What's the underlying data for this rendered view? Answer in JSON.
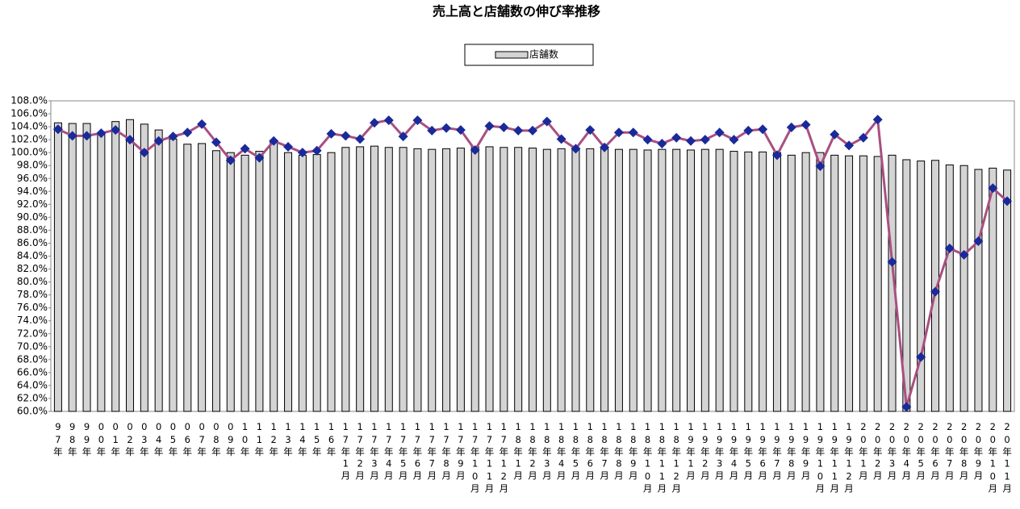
{
  "chart_data": {
    "type": "combo",
    "title": "売上高と店舗数の伸び率推移",
    "categories": [
      "97年",
      "98年",
      "99年",
      "00年",
      "01年",
      "02年",
      "03年",
      "04年",
      "05年",
      "06年",
      "07年",
      "08年",
      "09年",
      "10年",
      "11年",
      "12年",
      "13年",
      "14年",
      "15年",
      "16年",
      "17年1月",
      "17年2月",
      "17年3月",
      "17年4月",
      "17年5月",
      "17年6月",
      "17年7月",
      "17年8月",
      "17年9月",
      "17年10月",
      "17年11月",
      "17年12月",
      "18年1月",
      "18年2月",
      "18年3月",
      "18年4月",
      "18年5月",
      "18年6月",
      "18年7月",
      "18年8月",
      "18年9月",
      "18年10月",
      "18年11月",
      "18年12月",
      "19年1月",
      "19年2月",
      "19年3月",
      "19年4月",
      "19年5月",
      "19年6月",
      "19年7月",
      "19年8月",
      "19年9月",
      "19年10月",
      "19年11月",
      "19年12月",
      "20年1月",
      "20年2月",
      "20年3月",
      "20年4月",
      "20年5月",
      "20年6月",
      "20年7月",
      "20年8月",
      "20年9月",
      "20年10月",
      "20年11月"
    ],
    "series": [
      {
        "name": "店舗数",
        "type": "bar",
        "color": "#d4d4d4",
        "values": [
          104.6,
          104.5,
          104.5,
          102.8,
          104.8,
          105.1,
          104.4,
          103.5,
          102.1,
          101.3,
          101.4,
          100.3,
          100.0,
          99.6,
          100.2,
          101.6,
          100.0,
          99.6,
          99.7,
          100.0,
          100.8,
          100.9,
          101.0,
          100.8,
          100.8,
          100.6,
          100.5,
          100.6,
          100.7,
          100.9,
          100.9,
          100.8,
          100.8,
          100.7,
          100.5,
          100.6,
          100.7,
          100.6,
          100.7,
          100.5,
          100.5,
          100.4,
          100.5,
          100.5,
          100.4,
          100.5,
          100.5,
          100.2,
          100.1,
          100.1,
          100.0,
          99.6,
          100.0,
          100.0,
          99.6,
          99.5,
          99.5,
          99.4,
          99.6,
          98.9,
          98.7,
          98.8,
          98.1,
          98.0,
          97.4,
          97.6,
          97.3
        ]
      },
      {
        "type": "line",
        "color": "#a94f80",
        "marker_color": "#1a2a9a",
        "values": [
          103.6,
          102.6,
          102.6,
          103.0,
          103.5,
          102.0,
          100.0,
          101.8,
          102.5,
          103.1,
          104.4,
          101.6,
          98.8,
          100.6,
          99.2,
          101.8,
          100.9,
          100.0,
          100.3,
          102.9,
          102.6,
          102.1,
          104.6,
          105.0,
          102.5,
          105.0,
          103.4,
          103.8,
          103.5,
          100.4,
          104.1,
          103.9,
          103.4,
          103.4,
          104.8,
          102.1,
          100.6,
          103.5,
          100.8,
          103.1,
          103.1,
          102.0,
          101.4,
          102.3,
          101.8,
          102.0,
          103.1,
          102.0,
          103.4,
          103.6,
          99.6,
          103.9,
          104.3,
          97.9,
          102.8,
          101.1,
          102.3,
          105.1,
          83.1,
          60.7,
          68.4,
          78.5,
          85.2,
          84.2,
          86.3,
          94.5,
          92.5
        ]
      }
    ],
    "ylim": [
      60,
      108
    ],
    "yticks": [
      {
        "value": 60,
        "label": "60.0%"
      },
      {
        "value": 62,
        "label": "62.0%"
      },
      {
        "value": 64,
        "label": "64.0%"
      },
      {
        "value": 66,
        "label": "66.0%"
      },
      {
        "value": 68,
        "label": "68.0%"
      },
      {
        "value": 70,
        "label": "70.0%"
      },
      {
        "value": 72,
        "label": "72.0%"
      },
      {
        "value": 74,
        "label": "74.0%"
      },
      {
        "value": 76,
        "label": "76.0%"
      },
      {
        "value": 78,
        "label": "78.0%"
      },
      {
        "value": 80,
        "label": "80.0%"
      },
      {
        "value": 82,
        "label": "82.0%"
      },
      {
        "value": 84,
        "label": "84.0%"
      },
      {
        "value": 86,
        "label": "86.0%"
      },
      {
        "value": 88,
        "label": "88.0%"
      },
      {
        "value": 90,
        "label": "90.0%"
      },
      {
        "value": 92,
        "label": "92.0%"
      },
      {
        "value": 94,
        "label": "94.0%"
      },
      {
        "value": 96,
        "label": "96.0%"
      },
      {
        "value": 98,
        "label": "98.0%"
      },
      {
        "value": 100,
        "label": "100.0%"
      },
      {
        "value": 102,
        "label": "102.0%"
      },
      {
        "value": 104,
        "label": "104.0%"
      },
      {
        "value": 106,
        "label": "106.0%"
      },
      {
        "value": 108,
        "label": "108.0%"
      }
    ],
    "grid": false,
    "legend": "top"
  }
}
